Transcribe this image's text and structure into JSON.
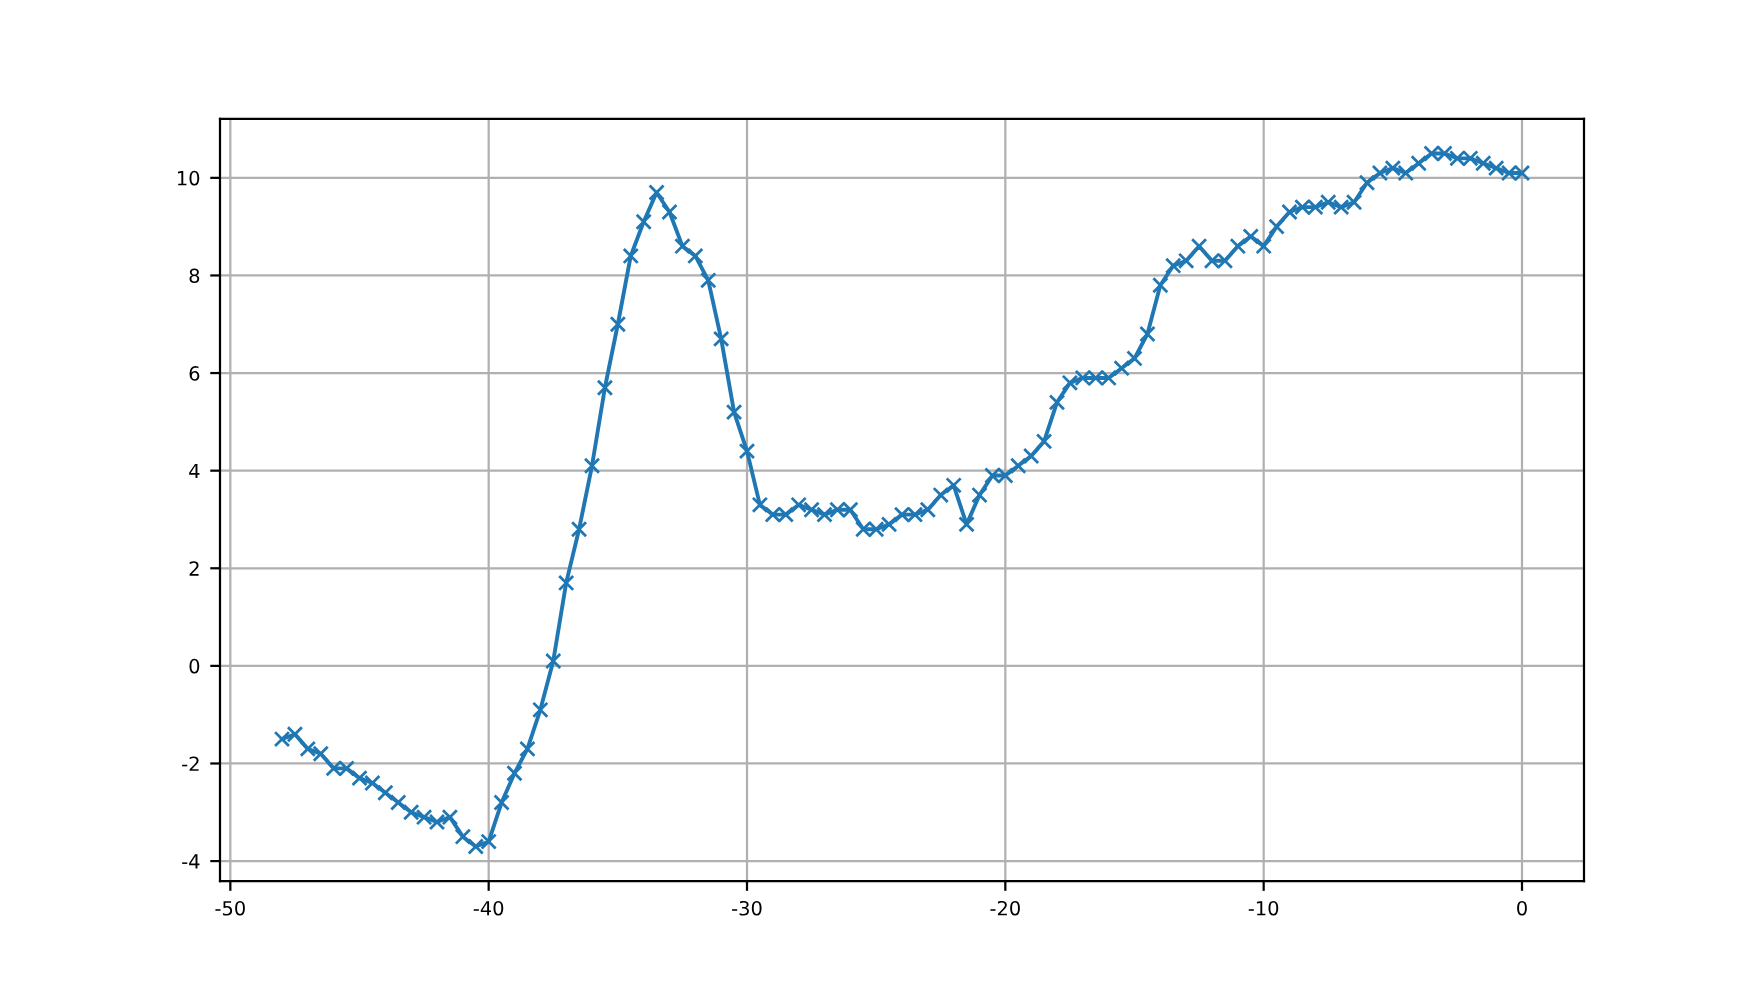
{
  "chart_data": {
    "type": "line",
    "marker": "cross",
    "grid": true,
    "x": [
      -48,
      -47.5,
      -47,
      -46.5,
      -46,
      -45.5,
      -45,
      -44.5,
      -44,
      -43.5,
      -43,
      -42.5,
      -42,
      -41.5,
      -41,
      -40.5,
      -40,
      -39.5,
      -39,
      -38.5,
      -38,
      -37.5,
      -37,
      -36.5,
      -36,
      -35.5,
      -35,
      -34.5,
      -34,
      -33.5,
      -33,
      -32.5,
      -32,
      -31.5,
      -31,
      -30.5,
      -30,
      -29.5,
      -29,
      -28.5,
      -28,
      -27.5,
      -27,
      -26.5,
      -26,
      -25.5,
      -25,
      -24.5,
      -24,
      -23.5,
      -23,
      -22.5,
      -22,
      -21.5,
      -21,
      -20.5,
      -20,
      -19.5,
      -19,
      -18.5,
      -18,
      -17.5,
      -17,
      -16.5,
      -16,
      -15.5,
      -15,
      -14.5,
      -14,
      -13.5,
      -13,
      -12.5,
      -12,
      -11.5,
      -11,
      -10.5,
      -10,
      -9.5,
      -9,
      -8.5,
      -8,
      -7.5,
      -7,
      -6.5,
      -6,
      -5.5,
      -5,
      -4.5,
      -4,
      -3.5,
      -3,
      -2.5,
      -2,
      -1.5,
      -1,
      -0.5,
      0
    ],
    "series": [
      {
        "color": "#1f77b4",
        "values": [
          -1.5,
          -1.4,
          -1.7,
          -1.8,
          -2.1,
          -2.1,
          -2.3,
          -2.4,
          -2.6,
          -2.8,
          -3.0,
          -3.1,
          -3.2,
          -3.1,
          -3.5,
          -3.7,
          -3.6,
          -2.8,
          -2.2,
          -1.7,
          -0.9,
          0.1,
          1.7,
          2.8,
          4.1,
          5.7,
          7.0,
          8.4,
          9.1,
          9.7,
          9.3,
          8.6,
          8.4,
          7.9,
          6.7,
          5.2,
          4.4,
          3.3,
          3.1,
          3.1,
          3.3,
          3.2,
          3.1,
          3.2,
          3.2,
          2.8,
          2.8,
          2.9,
          3.1,
          3.1,
          3.2,
          3.5,
          3.7,
          2.9,
          3.5,
          3.9,
          3.9,
          4.1,
          4.3,
          4.6,
          5.4,
          5.8,
          5.9,
          5.9,
          5.9,
          6.1,
          6.3,
          6.8,
          7.8,
          8.2,
          8.3,
          8.6,
          8.3,
          8.3,
          8.6,
          8.8,
          8.6,
          9.0,
          9.3,
          9.4,
          9.4,
          9.5,
          9.4,
          9.5,
          9.9,
          10.1,
          10.2,
          10.1,
          10.3,
          10.5,
          10.5,
          10.4,
          10.4,
          10.3,
          10.2,
          10.1,
          10.1
        ]
      }
    ],
    "xlim": [
      -50.4,
      2.4
    ],
    "ylim": [
      -4.41,
      11.21
    ],
    "xticks": [
      -50,
      -40,
      -30,
      -20,
      -10,
      0
    ],
    "yticks": [
      -4,
      -2,
      0,
      2,
      4,
      6,
      8,
      10
    ]
  }
}
